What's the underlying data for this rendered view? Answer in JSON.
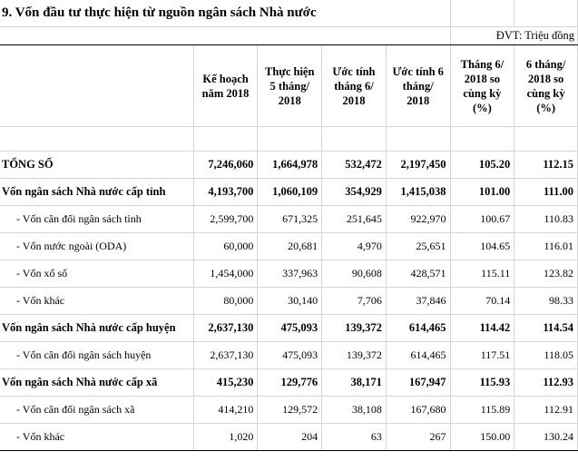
{
  "title": "9. Vốn đầu tư thực hiện từ nguồn ngân sách Nhà nước",
  "unit": "ĐVT: Triệu đồng",
  "columns": {
    "c1": "Kế hoạch năm 2018",
    "c2": "Thực hiện 5 tháng/ 2018",
    "c3": "Ước tính tháng 6/ 2018",
    "c4": "Ước tính 6 tháng/ 2018",
    "c5": "Tháng 6/ 2018 so cùng kỳ (%)",
    "c6": "6 tháng/ 2018 so cùng kỳ (%)"
  },
  "rows": [
    {
      "label": "TỔNG SỐ",
      "v": [
        "7,246,060",
        "1,664,978",
        "532,472",
        "2,197,450",
        "105.20",
        "112.15"
      ]
    },
    {
      "label": "Vốn ngân sách Nhà nước cấp tỉnh",
      "v": [
        "4,193,700",
        "1,060,109",
        "354,929",
        "1,415,038",
        "101.00",
        "111.00"
      ]
    },
    {
      "label": "- Vốn cân đối ngân sách tỉnh",
      "v": [
        "2,599,700",
        "671,325",
        "251,645",
        "922,970",
        "100.67",
        "110.83"
      ]
    },
    {
      "label": "- Vốn nước ngoài (ODA)",
      "v": [
        "60,000",
        "20,681",
        "4,970",
        "25,651",
        "104.65",
        "116.01"
      ]
    },
    {
      "label": "- Vốn xổ số",
      "v": [
        "1,454,000",
        "337,963",
        "90,608",
        "428,571",
        "115.11",
        "123.82"
      ]
    },
    {
      "label": "- Vốn khác",
      "v": [
        "80,000",
        "30,140",
        "7,706",
        "37,846",
        "70.14",
        "98.33"
      ]
    },
    {
      "label": "Vốn ngân sách Nhà nước cấp huyện",
      "v": [
        "2,637,130",
        "475,093",
        "139,372",
        "614,465",
        "114.42",
        "114.54"
      ]
    },
    {
      "label": "- Vốn cân đối ngân sách huyện",
      "v": [
        "2,637,130",
        "475,093",
        "139,372",
        "614,465",
        "117.51",
        "118.05"
      ]
    },
    {
      "label": "Vốn ngân sách Nhà nước cấp xã",
      "v": [
        "415,230",
        "129,776",
        "38,171",
        "167,947",
        "115.93",
        "112.93"
      ]
    },
    {
      "label": "- Vốn cân đối ngân sách xã",
      "v": [
        "414,210",
        "129,572",
        "38,108",
        "167,680",
        "115.89",
        "112.91"
      ]
    },
    {
      "label": "- Vốn khác",
      "v": [
        "1,020",
        "204",
        "63",
        "267",
        "150.00",
        "130.24"
      ]
    }
  ]
}
